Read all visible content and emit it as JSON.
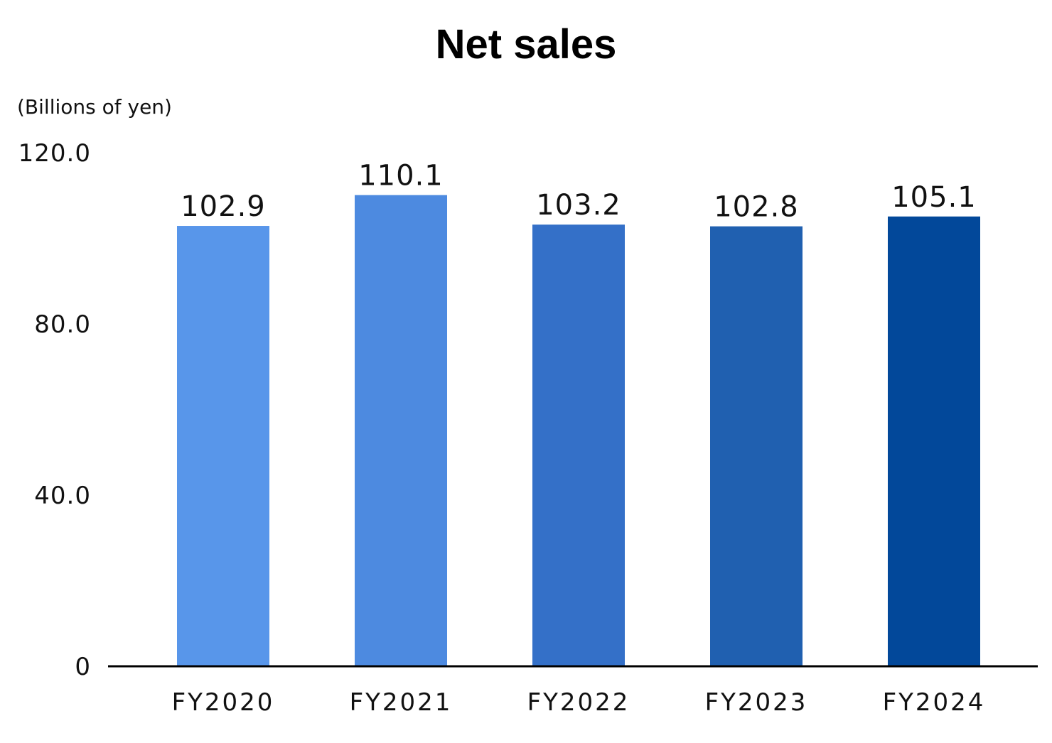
{
  "chart_data": {
    "type": "bar",
    "title": "Net sales",
    "ylabel": "(Billions of yen)",
    "xlabel": "",
    "categories": [
      "FY2020",
      "FY2021",
      "FY2022",
      "FY2023",
      "FY2024"
    ],
    "values": [
      102.9,
      110.1,
      103.2,
      102.8,
      105.1
    ],
    "value_labels": [
      "102.9",
      "110.1",
      "103.2",
      "102.8",
      "105.1"
    ],
    "bar_colors": [
      "#5896ea",
      "#4d8ae0",
      "#3470c8",
      "#2060b0",
      "#02489a"
    ],
    "yticks": [
      0,
      40,
      80,
      120
    ],
    "ytick_labels": [
      "0",
      "40.0",
      "80.0",
      "120.0"
    ],
    "ylim": [
      0,
      120
    ],
    "grid": false,
    "legend": "none"
  }
}
